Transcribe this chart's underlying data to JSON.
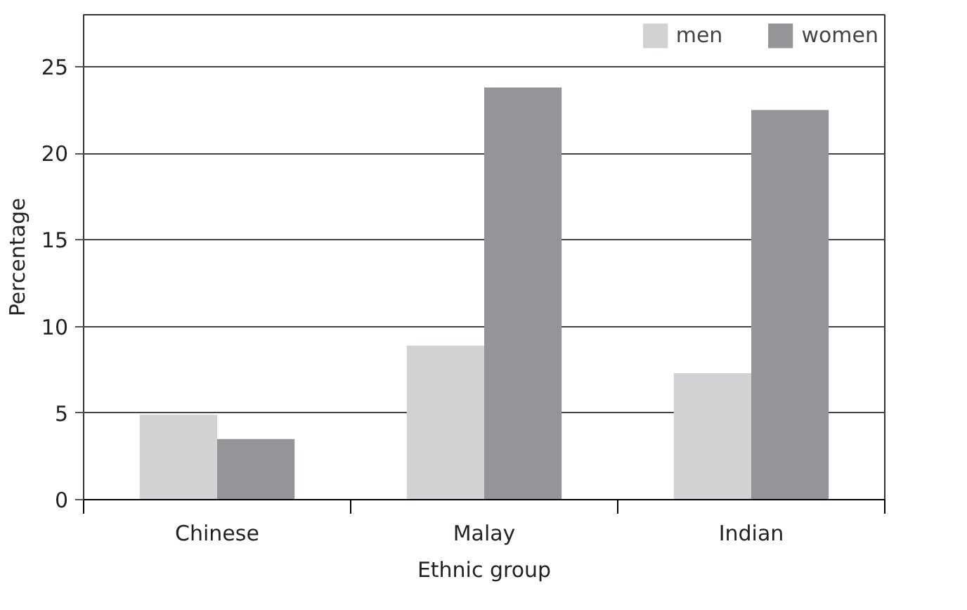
{
  "chart_data": {
    "type": "bar",
    "xlabel": "Ethnic group",
    "ylabel": "Percentage",
    "categories": [
      "Chinese",
      "Malay",
      "Indian"
    ],
    "series": [
      {
        "name": "men",
        "color": "#d1d2d4",
        "values": [
          4.9,
          8.9,
          7.3
        ]
      },
      {
        "name": "women",
        "color": "#939598",
        "values": [
          3.5,
          23.8,
          22.5
        ]
      }
    ],
    "ylim": [
      0,
      28
    ],
    "yticks": [
      0,
      5,
      10,
      15,
      20,
      25
    ],
    "grid": "y",
    "legend": "top right"
  }
}
